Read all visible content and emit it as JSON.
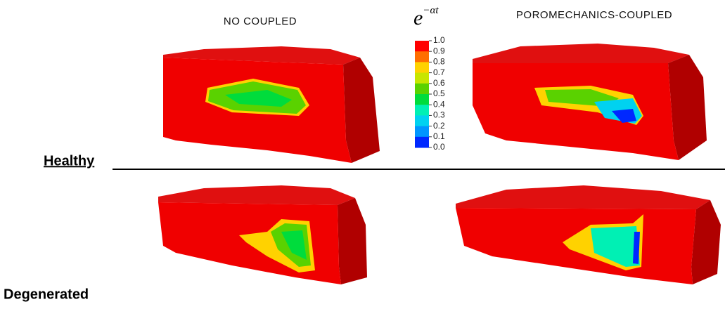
{
  "columns": {
    "left": "NO COUPLED",
    "right": "POROMECHANICS-COUPLED"
  },
  "rows": {
    "top": "Healthy",
    "bottom": "Degenerated"
  },
  "legend": {
    "title": {
      "base": "e",
      "exponent": "−αt"
    },
    "labels": [
      "1.0",
      "0.9",
      "0.8",
      "0.7",
      "0.6",
      "0.5",
      "0.4",
      "0.3",
      "0.2",
      "0.1",
      "0.0"
    ],
    "colors": [
      "#ff0000",
      "#ff6e00",
      "#ffd200",
      "#c8e600",
      "#5ad200",
      "#00dc3c",
      "#00f0b4",
      "#00d2f0",
      "#0096ff",
      "#0028ff"
    ]
  }
}
